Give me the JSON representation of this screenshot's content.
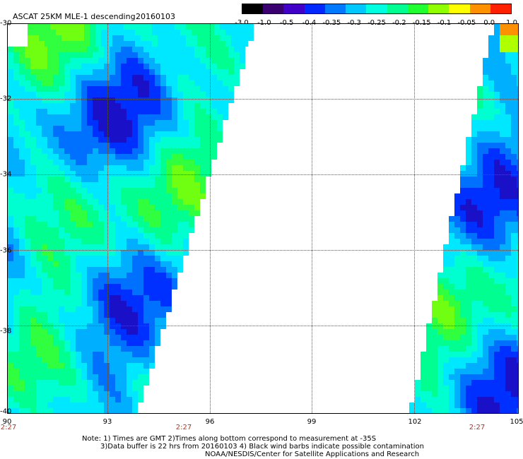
{
  "title": "ASCAT 25KM MLE-1 descending",
  "date": "20160103",
  "colorbar": {
    "labels": [
      "-3.0",
      "-1.0",
      "-0.5",
      "-0.4",
      "-0.35",
      "-0.3",
      "-0.25",
      "-0.2",
      "-0.15",
      "-0.1",
      "-0.05",
      "0.0",
      "1.0"
    ],
    "colors": [
      "#000000",
      "#3a0070",
      "#4000c8",
      "#0028ff",
      "#0078ff",
      "#00c8ff",
      "#00ffe0",
      "#00ff90",
      "#20ff30",
      "#90ff00",
      "#ffff00",
      "#ff9000",
      "#ff2000"
    ]
  },
  "axes": {
    "lat_labels": [
      "-30",
      "-32",
      "-34",
      "-36",
      "-38",
      "-40"
    ],
    "lon_labels": [
      "90",
      "93",
      "96",
      "99",
      "102",
      "105"
    ],
    "lat_range": [
      -40,
      -30
    ],
    "lon_range": [
      90,
      105
    ]
  },
  "times": [
    "2:27",
    "2:27",
    "2:27"
  ],
  "notes": [
    "Note: 1) Times are GMT 2)Times along bottom correspond to measurement at -35S",
    "3)Data buffer is 22 hrs from 20160103 4) Black wind barbs indicate possible contamination",
    "NOAA/NESDIS/Center for Satellite Applications and Research"
  ]
}
